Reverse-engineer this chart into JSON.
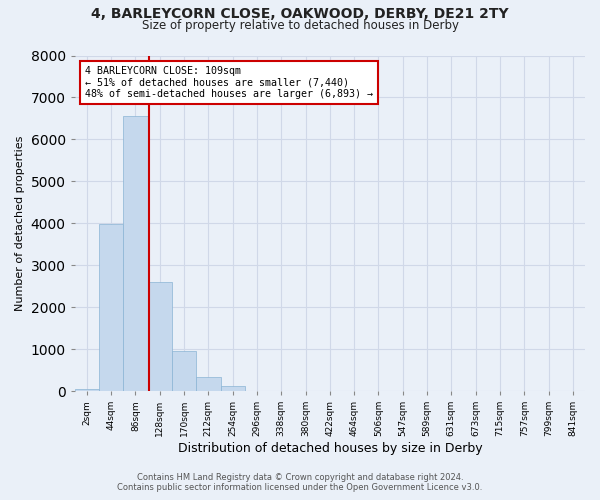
{
  "title_line1": "4, BARLEYCORN CLOSE, OAKWOOD, DERBY, DE21 2TY",
  "title_line2": "Size of property relative to detached houses in Derby",
  "xlabel": "Distribution of detached houses by size in Derby",
  "ylabel": "Number of detached properties",
  "bin_labels": [
    "2sqm",
    "44sqm",
    "86sqm",
    "128sqm",
    "170sqm",
    "212sqm",
    "254sqm",
    "296sqm",
    "338sqm",
    "380sqm",
    "422sqm",
    "464sqm",
    "506sqm",
    "547sqm",
    "589sqm",
    "631sqm",
    "673sqm",
    "715sqm",
    "757sqm",
    "799sqm",
    "841sqm"
  ],
  "bin_values": [
    60,
    3980,
    6560,
    2600,
    960,
    330,
    130,
    0,
    0,
    0,
    0,
    0,
    0,
    0,
    0,
    0,
    0,
    0,
    0,
    0,
    0
  ],
  "bar_color": "#c5d8ed",
  "bar_edge_color": "#8ab4d4",
  "property_line_bin": 2.548,
  "annotation_text_line1": "4 BARLEYCORN CLOSE: 109sqm",
  "annotation_text_line2": "← 51% of detached houses are smaller (7,440)",
  "annotation_text_line3": "48% of semi-detached houses are larger (6,893) →",
  "annotation_box_color": "#ffffff",
  "annotation_box_edge_color": "#cc0000",
  "vline_color": "#cc0000",
  "ylim": [
    0,
    8000
  ],
  "yticks": [
    0,
    1000,
    2000,
    3000,
    4000,
    5000,
    6000,
    7000,
    8000
  ],
  "grid_color": "#d0d8e8",
  "background_color": "#eaf0f8",
  "footer_line1": "Contains HM Land Registry data © Crown copyright and database right 2024.",
  "footer_line2": "Contains public sector information licensed under the Open Government Licence v3.0."
}
